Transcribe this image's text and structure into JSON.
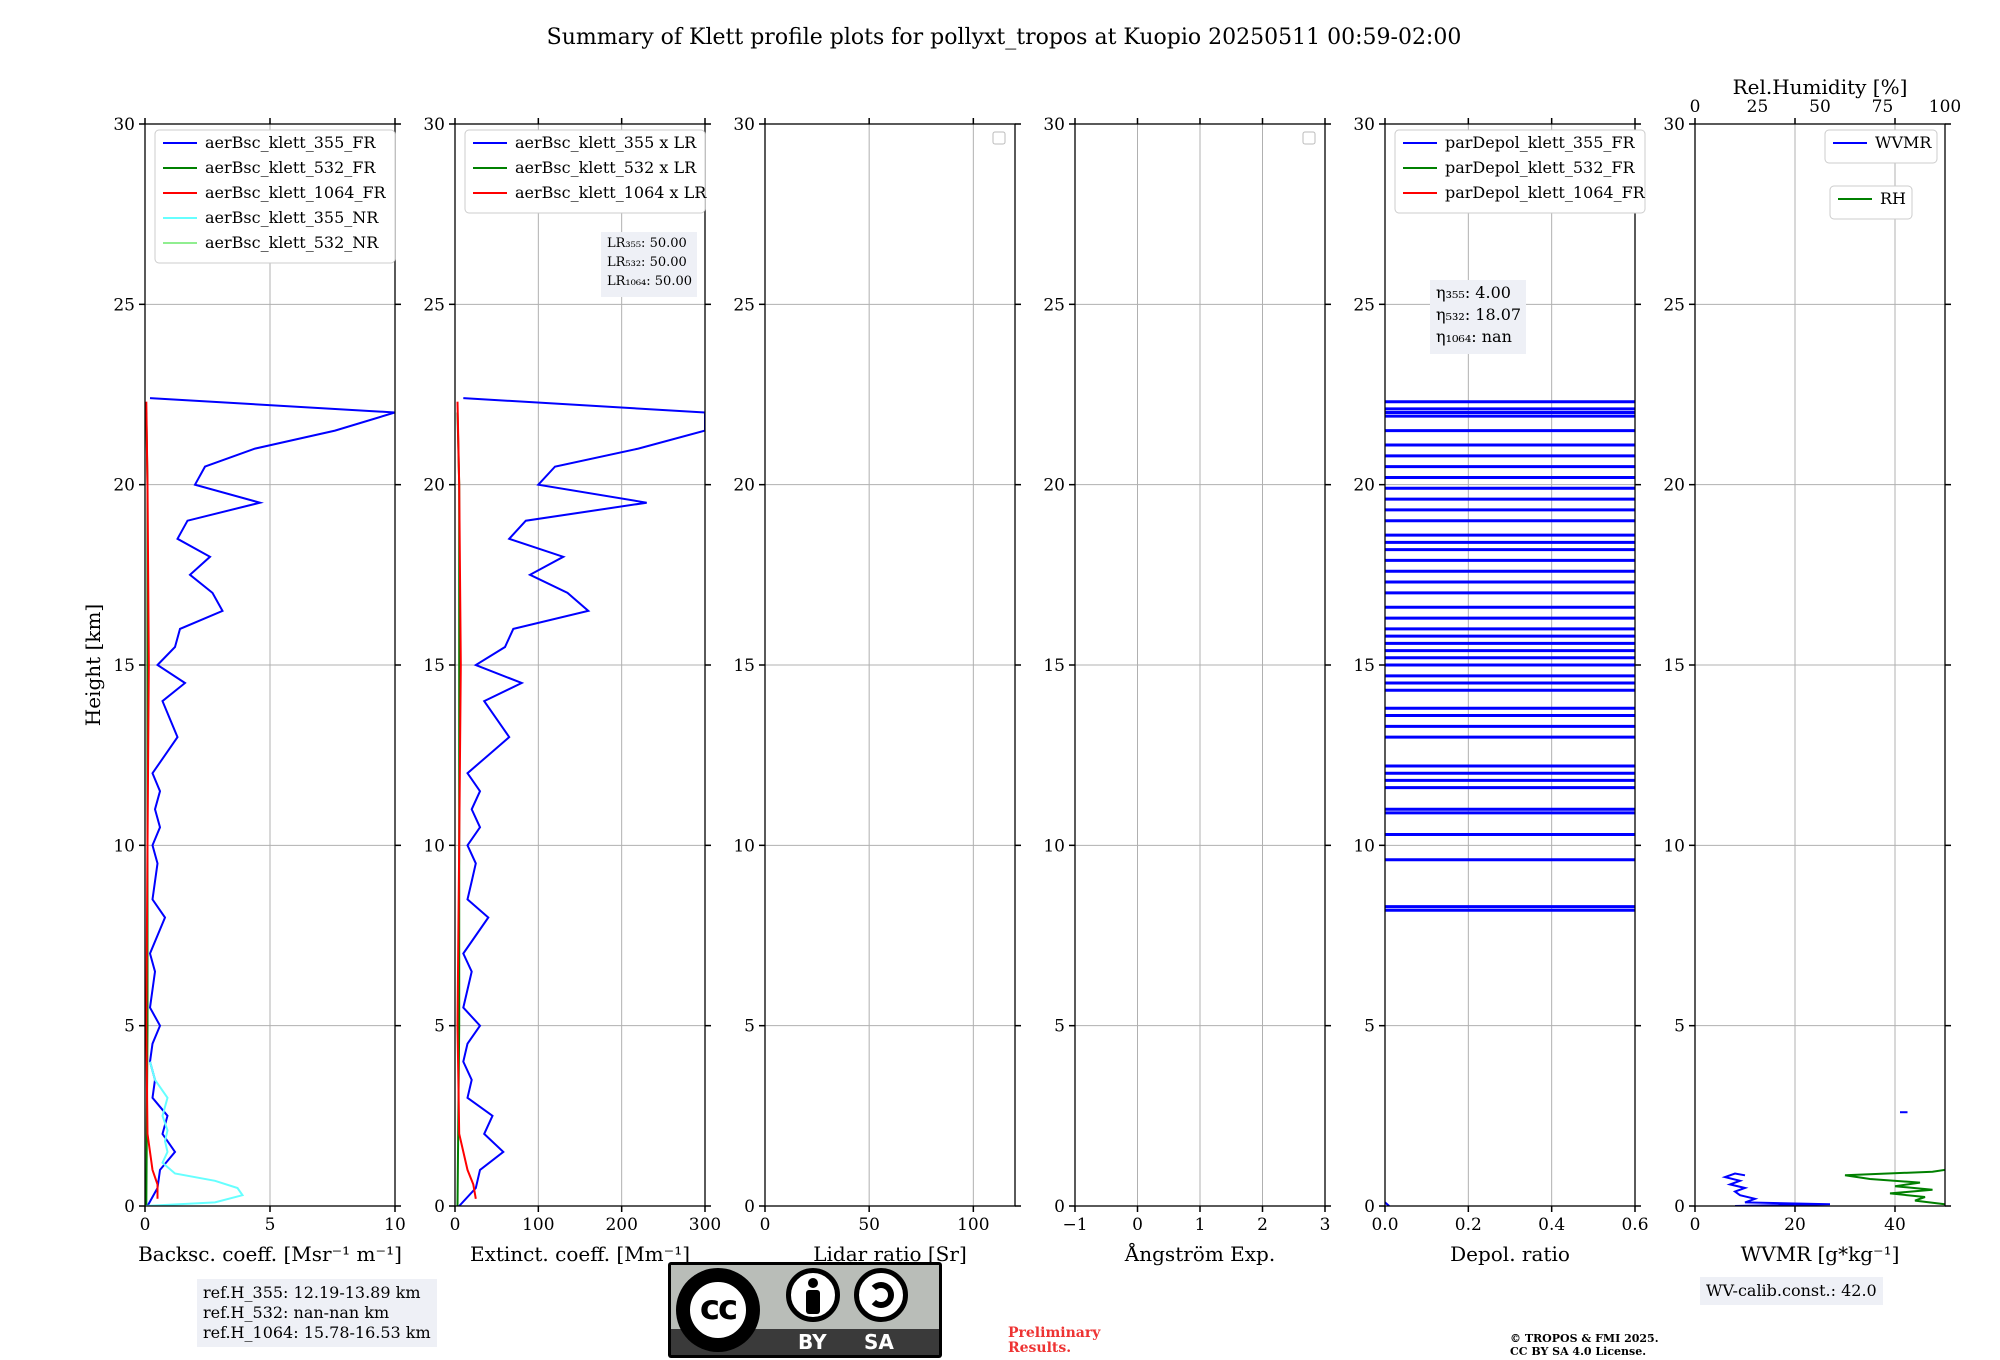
{
  "title": "Summary of Klett profile plots for pollyxt_tropos at Kuopio 20250511 00:59-02:00",
  "colors": {
    "blue": "#0000ff",
    "green": "#008000",
    "red": "#ff0000",
    "cyan": "#66ffff",
    "lightgreen": "#90ee90",
    "grid": "#b0b0b0"
  },
  "chart_data": [
    {
      "type": "line",
      "name": "backscatter",
      "xlabel": "Backsc. coeff. [Msr⁻¹ m⁻¹]",
      "ylabel": "Height [km]",
      "xlim": [
        0,
        10
      ],
      "ylim": [
        0,
        30
      ],
      "xticks": [
        0,
        5,
        10
      ],
      "yticks": [
        0,
        5,
        10,
        15,
        20,
        25,
        30
      ],
      "legend": [
        {
          "label": "aerBsc_klett_355_FR",
          "color": "#0000ff"
        },
        {
          "label": "aerBsc_klett_532_FR",
          "color": "#008000"
        },
        {
          "label": "aerBsc_klett_1064_FR",
          "color": "#ff0000"
        },
        {
          "label": "aerBsc_klett_355_NR",
          "color": "#66ffff"
        },
        {
          "label": "aerBsc_klett_532_NR",
          "color": "#90ee90"
        }
      ],
      "series": [
        {
          "name": "aerBsc_klett_355_FR",
          "color": "#0000ff",
          "points": [
            [
              0.1,
              0
            ],
            [
              0.5,
              0.5
            ],
            [
              0.6,
              1.0
            ],
            [
              1.2,
              1.5
            ],
            [
              0.7,
              2.0
            ],
            [
              0.9,
              2.5
            ],
            [
              0.3,
              3.0
            ],
            [
              0.4,
              3.5
            ],
            [
              0.2,
              4.0
            ],
            [
              0.3,
              4.5
            ],
            [
              0.6,
              5.0
            ],
            [
              0.2,
              5.5
            ],
            [
              0.3,
              6.0
            ],
            [
              0.4,
              6.5
            ],
            [
              0.2,
              7.0
            ],
            [
              0.5,
              7.5
            ],
            [
              0.8,
              8.0
            ],
            [
              0.3,
              8.5
            ],
            [
              0.4,
              9.0
            ],
            [
              0.5,
              9.5
            ],
            [
              0.3,
              10.0
            ],
            [
              0.6,
              10.5
            ],
            [
              0.4,
              11.0
            ],
            [
              0.6,
              11.5
            ],
            [
              0.3,
              12.0
            ],
            [
              0.8,
              12.5
            ],
            [
              1.3,
              13.0
            ],
            [
              1.0,
              13.5
            ],
            [
              0.7,
              14.0
            ],
            [
              1.6,
              14.5
            ],
            [
              0.5,
              15.0
            ],
            [
              1.2,
              15.5
            ],
            [
              1.4,
              16.0
            ],
            [
              3.1,
              16.5
            ],
            [
              2.7,
              17.0
            ],
            [
              1.8,
              17.5
            ],
            [
              2.6,
              18.0
            ],
            [
              1.3,
              18.5
            ],
            [
              1.7,
              19.0
            ],
            [
              4.6,
              19.5
            ],
            [
              2.0,
              20.0
            ],
            [
              2.4,
              20.5
            ],
            [
              4.4,
              21.0
            ],
            [
              7.6,
              21.5
            ],
            [
              10,
              22.0
            ],
            [
              0.2,
              22.4
            ]
          ]
        },
        {
          "name": "aerBsc_klett_532_FR",
          "color": "#008000",
          "points": [
            [
              0.05,
              0
            ],
            [
              0.1,
              5
            ],
            [
              0.1,
              10
            ],
            [
              0.1,
              15
            ],
            [
              0.1,
              20
            ],
            [
              0.05,
              22
            ]
          ]
        },
        {
          "name": "aerBsc_klett_1064_FR",
          "color": "#ff0000",
          "points": [
            [
              0.5,
              0.2
            ],
            [
              0.5,
              0.6
            ],
            [
              0.3,
              1.0
            ],
            [
              0.1,
              2.0
            ],
            [
              0.05,
              5
            ],
            [
              0.1,
              10
            ],
            [
              0.15,
              15
            ],
            [
              0.1,
              20
            ],
            [
              0.05,
              22.3
            ]
          ]
        },
        {
          "name": "aerBsc_klett_355_NR",
          "color": "#66ffff",
          "points": [
            [
              0,
              0
            ],
            [
              2.8,
              0.1
            ],
            [
              3.9,
              0.3
            ],
            [
              3.7,
              0.5
            ],
            [
              2.8,
              0.7
            ],
            [
              1.2,
              0.9
            ],
            [
              0.7,
              1.2
            ],
            [
              0.9,
              1.5
            ],
            [
              0.8,
              1.8
            ],
            [
              0.9,
              2.1
            ],
            [
              0.7,
              2.5
            ],
            [
              0.9,
              3.0
            ],
            [
              0.4,
              3.5
            ],
            [
              0.2,
              4.0
            ]
          ]
        },
        {
          "name": "aerBsc_klett_532_NR",
          "color": "#90ee90",
          "points": []
        }
      ]
    },
    {
      "type": "line",
      "name": "extinction",
      "xlabel": "Extinct. coeff. [Mm⁻¹]",
      "ylabel": "",
      "xlim": [
        0,
        300
      ],
      "ylim": [
        0,
        30
      ],
      "xticks": [
        0,
        100,
        200,
        300
      ],
      "yticks": [
        0,
        5,
        10,
        15,
        20,
        25,
        30
      ],
      "legend": [
        {
          "label": "aerBsc_klett_355 x LR",
          "color": "#0000ff"
        },
        {
          "label": "aerBsc_klett_532 x LR",
          "color": "#008000"
        },
        {
          "label": "aerBsc_klett_1064 x LR",
          "color": "#ff0000"
        }
      ],
      "series": [
        {
          "name": "aerBsc_klett_355 x LR",
          "color": "#0000ff",
          "points": [
            [
              5,
              0
            ],
            [
              25,
              0.5
            ],
            [
              30,
              1.0
            ],
            [
              58,
              1.5
            ],
            [
              35,
              2.0
            ],
            [
              45,
              2.5
            ],
            [
              15,
              3.0
            ],
            [
              20,
              3.5
            ],
            [
              10,
              4.0
            ],
            [
              15,
              4.5
            ],
            [
              30,
              5.0
            ],
            [
              10,
              5.5
            ],
            [
              15,
              6.0
            ],
            [
              20,
              6.5
            ],
            [
              10,
              7.0
            ],
            [
              25,
              7.5
            ],
            [
              40,
              8.0
            ],
            [
              15,
              8.5
            ],
            [
              20,
              9.0
            ],
            [
              25,
              9.5
            ],
            [
              15,
              10.0
            ],
            [
              30,
              10.5
            ],
            [
              20,
              11.0
            ],
            [
              30,
              11.5
            ],
            [
              15,
              12.0
            ],
            [
              40,
              12.5
            ],
            [
              65,
              13.0
            ],
            [
              50,
              13.5
            ],
            [
              35,
              14.0
            ],
            [
              80,
              14.5
            ],
            [
              25,
              15.0
            ],
            [
              60,
              15.5
            ],
            [
              70,
              16.0
            ],
            [
              160,
              16.5
            ],
            [
              135,
              17.0
            ],
            [
              90,
              17.5
            ],
            [
              130,
              18.0
            ],
            [
              65,
              18.5
            ],
            [
              85,
              19.0
            ],
            [
              230,
              19.5
            ],
            [
              100,
              20.0
            ],
            [
              120,
              20.5
            ],
            [
              220,
              21.0
            ],
            [
              300,
              21.5
            ],
            [
              300,
              22.0
            ],
            [
              10,
              22.4
            ]
          ]
        },
        {
          "name": "aerBsc_klett_532 x LR",
          "color": "#008000",
          "points": [
            [
              3,
              0
            ],
            [
              5,
              5
            ],
            [
              5,
              10
            ],
            [
              5,
              15
            ],
            [
              5,
              20
            ],
            [
              3,
              22
            ]
          ]
        },
        {
          "name": "aerBsc_klett_1064 x LR",
          "color": "#ff0000",
          "points": [
            [
              25,
              0.2
            ],
            [
              22,
              0.6
            ],
            [
              15,
              1.0
            ],
            [
              5,
              2.0
            ],
            [
              3,
              5
            ],
            [
              5,
              10
            ],
            [
              7,
              15
            ],
            [
              5,
              20
            ],
            [
              3,
              22.3
            ]
          ]
        }
      ],
      "annotation": [
        "LR₃₅₅: 50.00",
        "LR₅₃₂: 50.00",
        "LR₁₀₆₄: 50.00"
      ]
    },
    {
      "type": "line",
      "name": "lidar-ratio",
      "xlabel": "Lidar ratio [Sr]",
      "ylabel": "",
      "xlim": [
        0,
        120
      ],
      "ylim": [
        0,
        30
      ],
      "xticks": [
        0,
        50,
        100
      ],
      "yticks": [
        0,
        5,
        10,
        15,
        20,
        25,
        30
      ],
      "legend": [],
      "series": []
    },
    {
      "type": "line",
      "name": "angstrom",
      "xlabel": "Ångström Exp.",
      "ylabel": "",
      "xlim": [
        -1,
        3
      ],
      "ylim": [
        0,
        30
      ],
      "xticks": [
        -1,
        0,
        1,
        2,
        3
      ],
      "xticklabels": [
        "−1",
        "0",
        "1",
        "2",
        "3"
      ],
      "yticks": [
        0,
        5,
        10,
        15,
        20,
        25,
        30
      ],
      "legend": [],
      "series": []
    },
    {
      "type": "line",
      "name": "depol",
      "xlabel": "Depol. ratio",
      "ylabel": "",
      "xlim": [
        0,
        0.6
      ],
      "ylim": [
        0,
        30
      ],
      "xticks": [
        0,
        0.2,
        0.4,
        0.6
      ],
      "xticklabels": [
        "0.0",
        "0.2",
        "0.4",
        "0.6"
      ],
      "yticks": [
        0,
        5,
        10,
        15,
        20,
        25,
        30
      ],
      "legend": [
        {
          "label": "parDepol_klett_355_FR",
          "color": "#0000ff"
        },
        {
          "label": "parDepol_klett_532_FR",
          "color": "#008000"
        },
        {
          "label": "parDepol_klett_1064_FR",
          "color": "#ff0000"
        }
      ],
      "series": [
        {
          "name": "parDepol_klett_355_FR",
          "color": "#0000ff",
          "hlines": [
            8.2,
            8.3,
            9.6,
            10.3,
            10.9,
            11.0,
            11.6,
            11.8,
            12.0,
            12.2,
            13.0,
            13.3,
            13.6,
            13.8,
            14.3,
            14.5,
            14.7,
            15.0,
            15.2,
            15.4,
            15.6,
            15.8,
            16.0,
            16.3,
            16.6,
            17.0,
            17.3,
            17.6,
            17.9,
            18.2,
            18.4,
            18.6,
            19.0,
            19.3,
            19.6,
            19.9,
            20.2,
            20.5,
            20.8,
            21.1,
            21.5,
            21.9,
            22.0,
            22.1,
            22.3
          ],
          "points": [
            [
              0.01,
              0
            ],
            [
              0,
              0.1
            ]
          ]
        },
        {
          "name": "parDepol_klett_532_FR",
          "color": "#008000",
          "points": []
        },
        {
          "name": "parDepol_klett_1064_FR",
          "color": "#ff0000",
          "points": []
        }
      ],
      "annotation": [
        "η₃₅₅: 4.00",
        "η₅₃₂: 18.07",
        "η₁₀₆₄: nan"
      ]
    },
    {
      "type": "line",
      "name": "wvmr",
      "xlabel": "WVMR [g*kg⁻¹]",
      "ylabel": "",
      "top_xlabel": "Rel.Humidity [%]",
      "xlim": [
        0,
        50
      ],
      "ylim": [
        0,
        30
      ],
      "xticks": [
        0,
        20,
        40
      ],
      "top_xlim": [
        0,
        100
      ],
      "top_xticks": [
        0,
        25,
        50,
        75,
        100
      ],
      "yticks": [
        0,
        5,
        10,
        15,
        20,
        25,
        30
      ],
      "legend": [
        {
          "label": "WVMR",
          "color": "#0000ff"
        }
      ],
      "legend2": [
        {
          "label": "RH",
          "color": "#008000"
        }
      ],
      "series": [
        {
          "name": "WVMR",
          "color": "#0000ff",
          "axis": "bottom",
          "points": [
            [
              8,
              0
            ],
            [
              27,
              0.05
            ],
            [
              10,
              0.1
            ],
            [
              12,
              0.2
            ],
            [
              9,
              0.3
            ],
            [
              8,
              0.4
            ],
            [
              10,
              0.5
            ],
            [
              7,
              0.6
            ],
            [
              9,
              0.7
            ],
            [
              6,
              0.8
            ],
            [
              8,
              0.9
            ],
            [
              10,
              0.85
            ]
          ],
          "hlines_x": [
            [
              41,
              42.5,
              2.6
            ]
          ]
        },
        {
          "name": "RH",
          "color": "#008000",
          "axis": "top",
          "points": [
            [
              100,
              0.05
            ],
            [
              88,
              0.15
            ],
            [
              92,
              0.25
            ],
            [
              78,
              0.35
            ],
            [
              95,
              0.45
            ],
            [
              80,
              0.55
            ],
            [
              90,
              0.65
            ],
            [
              70,
              0.75
            ],
            [
              60,
              0.85
            ],
            [
              95,
              0.95
            ],
            [
              100,
              1.0
            ]
          ]
        }
      ],
      "annotation": [
        "WV-calib.const.: 42.0"
      ]
    }
  ],
  "ref_heights": [
    "ref.H_355: 12.19-13.89 km",
    "ref.H_532: nan-nan km",
    "ref.H_1064: 15.78-16.53 km"
  ],
  "wv_calib": "WV-calib.const.: 42.0",
  "cc_badge": {
    "cc": "cc",
    "by": "BY",
    "sa": "SA"
  },
  "preliminary": "Preliminary\nResults.",
  "copyright": "© TROPOS & FMI 2025.\nCC BY SA 4.0 License."
}
